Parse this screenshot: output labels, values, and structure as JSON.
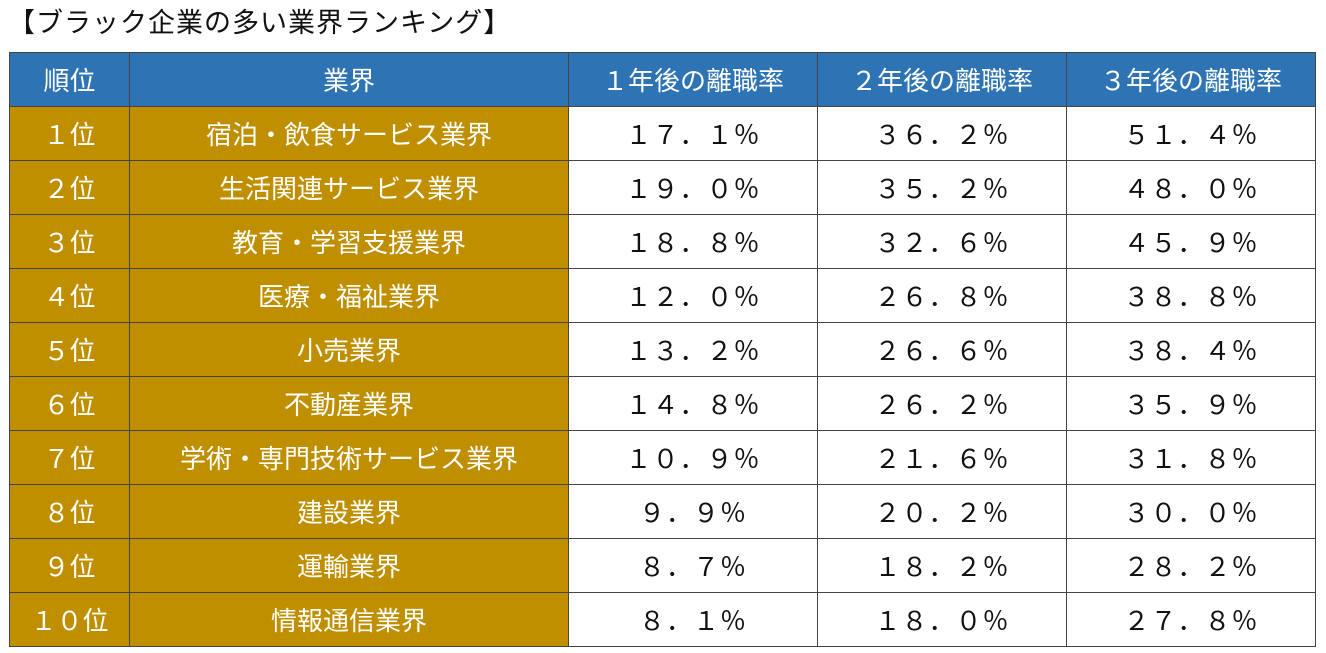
{
  "title": "【ブラック企業の多い業界ランキング】",
  "table": {
    "headers": [
      "順位",
      "業界",
      "１年後の離職率",
      "２年後の離職率",
      "３年後の離職率"
    ],
    "rows": [
      {
        "rank": "１位",
        "industry": "宿泊・飲食サービス業界",
        "y1": "１７．１％",
        "y2": "３６．２％",
        "y3": "５１．４％"
      },
      {
        "rank": "２位",
        "industry": "生活関連サービス業界",
        "y1": "１９．０％",
        "y2": "３５．２％",
        "y3": "４８．０％"
      },
      {
        "rank": "３位",
        "industry": "教育・学習支援業界",
        "y1": "１８．８％",
        "y2": "３２．６％",
        "y3": "４５．９％"
      },
      {
        "rank": "４位",
        "industry": "医療・福祉業界",
        "y1": "１２．０％",
        "y2": "２６．８％",
        "y3": "３８．８％"
      },
      {
        "rank": "５位",
        "industry": "小売業界",
        "y1": "１３．２％",
        "y2": "２６．６％",
        "y3": "３８．４％"
      },
      {
        "rank": "６位",
        "industry": "不動産業界",
        "y1": "１４．８％",
        "y2": "２６．２％",
        "y3": "３５．９％"
      },
      {
        "rank": "７位",
        "industry": "学術・専門技術サービス業界",
        "y1": "１０．９％",
        "y2": "２１．６％",
        "y3": "３１．８％"
      },
      {
        "rank": "８位",
        "industry": "建設業界",
        "y1": "９．９％",
        "y2": "２０．２％",
        "y3": "３０．０％"
      },
      {
        "rank": "９位",
        "industry": "運輸業界",
        "y1": "８．７％",
        "y2": "１８．２％",
        "y3": "２８．２％"
      },
      {
        "rank": "１０位",
        "industry": "情報通信業界",
        "y1": "８．１％",
        "y2": "１８．０％",
        "y3": "２７．８％"
      }
    ]
  },
  "colors": {
    "header_bg": "#2e74b5",
    "highlight_bg": "#bf8f00",
    "border": "#444444"
  }
}
